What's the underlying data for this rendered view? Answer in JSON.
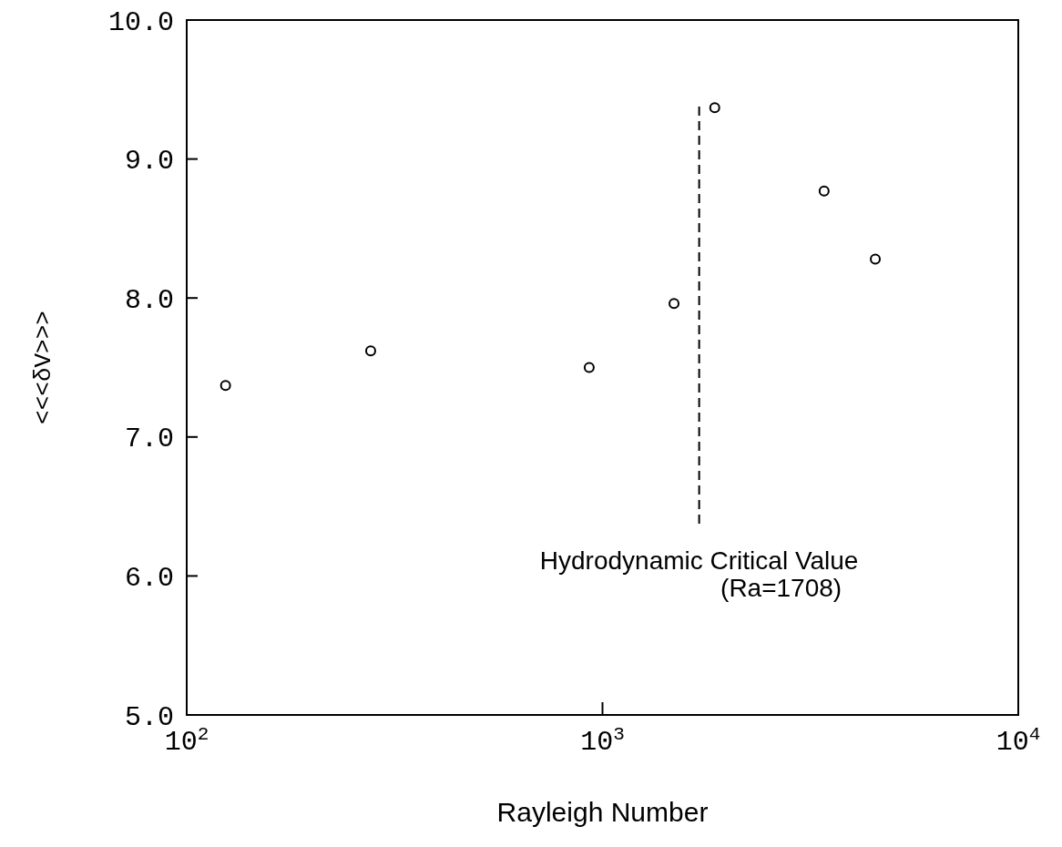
{
  "chart_data": {
    "type": "scatter",
    "xlabel": "Rayleigh Number",
    "ylabel": "<<<δV>>>",
    "x": [
      124,
      277,
      929,
      1486,
      1862,
      3412,
      4530
    ],
    "series": [
      {
        "color": "#000000",
        "values": [
          7.37,
          7.62,
          7.5,
          7.96,
          9.37,
          8.77,
          8.28
        ]
      }
    ],
    "log": "x",
    "xlim": [
      100,
      10000
    ],
    "xticks": [
      {
        "value": 100,
        "label": "10$^{2}$"
      },
      {
        "value": 1000,
        "label": "10$^{3}$"
      },
      {
        "value": 10000,
        "label": "10$^{4}$"
      }
    ],
    "ylim": [
      5,
      10
    ],
    "yticks": [
      {
        "value": 5,
        "label": "5.0"
      },
      {
        "value": 6,
        "label": "6.0"
      },
      {
        "value": 7,
        "label": "7.0"
      },
      {
        "value": 8,
        "label": "8.0"
      },
      {
        "value": 9,
        "label": "9.0"
      },
      {
        "value": 10,
        "label": "10.0"
      }
    ],
    "marker": "circle",
    "grid": false,
    "ref_lines": [
      {
        "axis": "x",
        "value": 1708,
        "label": "Hydrodynamic Critical Value (Ra=1708)",
        "line_style": "dashed",
        "color": "#000000"
      }
    ]
  }
}
